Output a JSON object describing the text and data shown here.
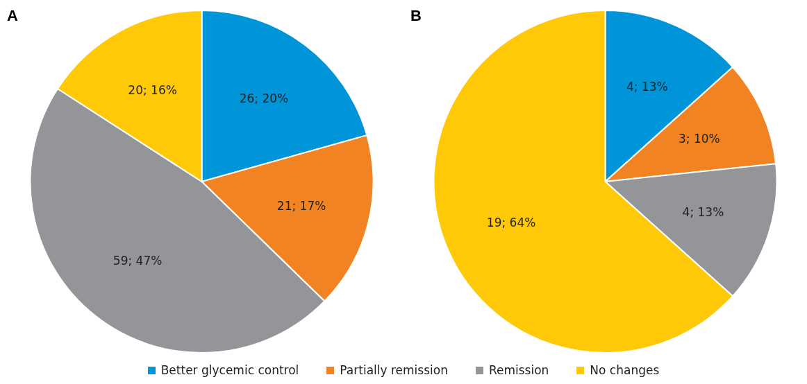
{
  "chart_data": [
    {
      "type": "pie",
      "title": "A",
      "categories": [
        "Better glycemic control",
        "Partially remission",
        "Remission",
        "No changes"
      ],
      "values": [
        26,
        21,
        59,
        20
      ],
      "colors": [
        "#0095d9",
        "#f28322",
        "#939598",
        "#ffc907"
      ],
      "value_labels": [
        "26; 20%",
        "21; 17%",
        "59; 47%",
        "20; 16%"
      ],
      "legend": "bottom"
    },
    {
      "type": "pie",
      "title": "B",
      "categories": [
        null,
        null,
        null,
        null
      ],
      "values": [
        4,
        3,
        4,
        19
      ],
      "colors": [
        "#0095d9",
        "#f28322",
        "#939598",
        "#ffc907"
      ],
      "value_labels": [
        "4; 13%",
        "3; 10%",
        "4; 13%",
        "19; 64%"
      ]
    }
  ]
}
